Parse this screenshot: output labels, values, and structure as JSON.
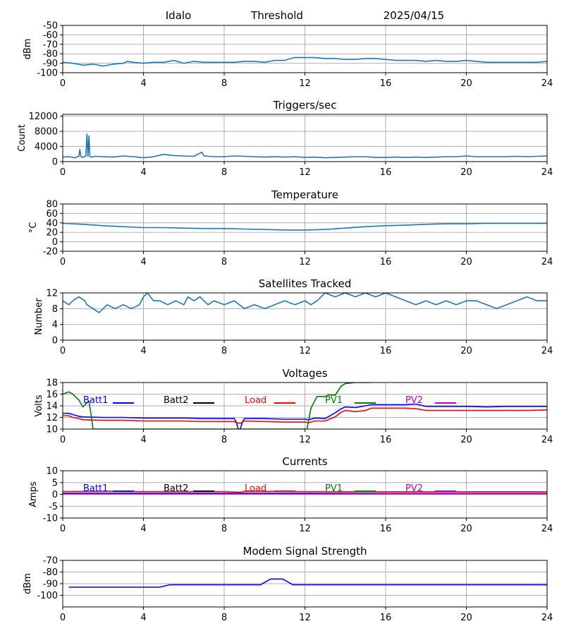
{
  "header": {
    "station": "Idalo",
    "mode": "Threshold",
    "date": "2025/04/15"
  },
  "chart_data": [
    {
      "id": "rssi",
      "type": "line",
      "title": "",
      "ylabel": "dBm",
      "xlim": [
        0,
        24
      ],
      "ylim": [
        -100,
        -50
      ],
      "yticks": [
        -100,
        -90,
        -80,
        -70,
        -60,
        -50
      ],
      "xticks": [
        0,
        4,
        8,
        12,
        16,
        20,
        24
      ],
      "grid": true,
      "series": [
        {
          "color": "#1f77b4",
          "x": [
            0,
            0.5,
            1,
            1.5,
            2,
            2.5,
            3,
            3.2,
            3.5,
            4,
            4.5,
            5,
            5.5,
            6,
            6.5,
            7,
            7.5,
            8,
            8.5,
            9,
            9.5,
            10,
            10.5,
            11,
            11.3,
            11.5,
            12,
            12.5,
            13,
            13.5,
            14,
            14.5,
            15,
            15.5,
            16,
            16.5,
            17,
            17.5,
            18,
            18.5,
            19,
            19.5,
            20,
            20.5,
            21,
            21.5,
            22,
            22.5,
            23,
            23.5,
            24
          ],
          "y": [
            -89,
            -90,
            -92,
            -91,
            -93,
            -91,
            -90,
            -88,
            -89,
            -90,
            -89,
            -89,
            -87,
            -90,
            -88,
            -89,
            -89,
            -89,
            -89,
            -88,
            -88,
            -89,
            -87,
            -87,
            -85,
            -84,
            -84,
            -84,
            -85,
            -85,
            -86,
            -86,
            -85,
            -85,
            -86,
            -87,
            -87,
            -87,
            -88,
            -87,
            -88,
            -88,
            -87,
            -88,
            -89,
            -89,
            -89,
            -89,
            -89,
            -89,
            -88
          ]
        }
      ]
    },
    {
      "id": "triggers",
      "type": "line",
      "title": "Triggers/sec",
      "ylabel": "Count",
      "xlim": [
        0,
        24
      ],
      "ylim": [
        0,
        12500
      ],
      "yticks": [
        0,
        4000,
        8000,
        12000
      ],
      "xticks": [
        0,
        4,
        8,
        12,
        16,
        20,
        24
      ],
      "grid": true,
      "series": [
        {
          "color": "#1f77b4",
          "x": [
            0,
            0.3,
            0.6,
            0.8,
            0.85,
            0.9,
            1.0,
            1.15,
            1.2,
            1.25,
            1.3,
            1.35,
            1.4,
            1.6,
            2,
            2.5,
            3,
            3.5,
            4,
            4.5,
            5,
            5.5,
            6,
            6.5,
            6.9,
            7,
            7.5,
            8,
            8.5,
            9,
            9.5,
            10,
            10.5,
            11,
            11.5,
            12,
            12.5,
            13,
            13.5,
            14,
            14.5,
            15,
            15.5,
            16,
            16.5,
            17,
            17.5,
            18,
            18.5,
            19,
            19.5,
            20,
            20.5,
            21,
            21.5,
            22,
            22.5,
            23,
            23.5,
            24
          ],
          "y": [
            1200,
            1300,
            1000,
            1400,
            3200,
            1300,
            1100,
            1500,
            7300,
            1400,
            6800,
            1300,
            1200,
            1400,
            1300,
            1200,
            1500,
            1300,
            1000,
            1300,
            1900,
            1600,
            1500,
            1400,
            2500,
            1500,
            1300,
            1300,
            1500,
            1400,
            1300,
            1200,
            1300,
            1200,
            1300,
            1100,
            1200,
            1000,
            1100,
            1200,
            1300,
            1300,
            1100,
            1100,
            1200,
            1100,
            1200,
            1100,
            1200,
            1300,
            1300,
            1500,
            1300,
            1300,
            1300,
            1300,
            1400,
            1300,
            1400,
            1500
          ]
        }
      ]
    },
    {
      "id": "temperature",
      "type": "line",
      "title": "Temperature",
      "ylabel": "°C",
      "xlim": [
        0,
        24
      ],
      "ylim": [
        -20,
        80
      ],
      "yticks": [
        -20,
        0,
        20,
        40,
        60,
        80
      ],
      "xticks": [
        0,
        4,
        8,
        12,
        16,
        20,
        24
      ],
      "grid": true,
      "series": [
        {
          "color": "#1f77b4",
          "x": [
            0,
            1,
            2,
            3,
            4,
            5,
            6,
            7,
            8,
            9,
            10,
            11,
            12,
            13,
            14,
            15,
            16,
            17,
            18,
            19,
            20,
            21,
            22,
            23,
            24
          ],
          "y": [
            39,
            37,
            34,
            32,
            30,
            30,
            29,
            28,
            28,
            27,
            26,
            25,
            25,
            26,
            29,
            32,
            34,
            35,
            37,
            38,
            38,
            39,
            39,
            39,
            39
          ]
        }
      ]
    },
    {
      "id": "satellites",
      "type": "line",
      "title": "Satellites Tracked",
      "ylabel": "Number",
      "xlim": [
        0,
        24
      ],
      "ylim": [
        0,
        12
      ],
      "yticks": [
        0,
        4,
        8,
        12
      ],
      "xticks": [
        0,
        4,
        8,
        12,
        16,
        20,
        24
      ],
      "grid": true,
      "series": [
        {
          "color": "#1f77b4",
          "x": [
            0,
            0.3,
            0.5,
            0.8,
            1.1,
            1.2,
            1.5,
            1.8,
            2,
            2.2,
            2.6,
            3,
            3.4,
            3.8,
            4,
            4.2,
            4.5,
            4.8,
            5.2,
            5.6,
            6,
            6.2,
            6.5,
            6.8,
            7.2,
            7.5,
            8,
            8.5,
            9,
            9.5,
            10,
            10.5,
            11,
            11.5,
            12,
            12.3,
            12.6,
            13,
            13.5,
            14,
            14.5,
            15,
            15.5,
            16,
            16.5,
            17,
            17.5,
            18,
            18.5,
            19,
            19.5,
            20,
            20.5,
            21,
            21.5,
            22,
            22.5,
            23,
            23.5,
            24
          ],
          "y": [
            10,
            9,
            10,
            11,
            10,
            9,
            8,
            7,
            8,
            9,
            8,
            9,
            8,
            9,
            11,
            12,
            10,
            10,
            9,
            10,
            9,
            11,
            10,
            11,
            9,
            10,
            9,
            10,
            8,
            9,
            8,
            9,
            10,
            9,
            10,
            9,
            10,
            12,
            11,
            12,
            11,
            12,
            11,
            12,
            11,
            10,
            9,
            10,
            9,
            10,
            9,
            10,
            10,
            9,
            8,
            9,
            10,
            11,
            10,
            10
          ]
        }
      ]
    },
    {
      "id": "voltages",
      "type": "line",
      "title": "Voltages",
      "ylabel": "Volts",
      "xlim": [
        0,
        24
      ],
      "ylim": [
        10,
        18
      ],
      "yticks": [
        10,
        12,
        14,
        16,
        18
      ],
      "xticks": [
        0,
        4,
        8,
        12,
        16,
        20,
        24
      ],
      "grid": true,
      "legend": [
        "Batt1",
        "Batt2",
        "Load",
        "PV1",
        "PV2"
      ],
      "series": [
        {
          "name": "Batt1",
          "color": "#0000ff",
          "x": [
            0,
            0.3,
            0.5,
            0.8,
            1,
            2,
            3,
            4,
            5,
            6,
            7,
            8,
            8.5,
            8.6,
            8.7,
            8.8,
            8.9,
            9.0,
            9.1,
            10,
            11,
            12,
            12.2,
            12.5,
            13,
            13.5,
            13.8,
            14,
            14.5,
            15,
            15.3,
            16,
            17,
            17.5,
            18,
            19,
            20,
            21,
            22,
            23,
            24
          ],
          "y": [
            12.7,
            12.7,
            12.5,
            12.2,
            12.1,
            12.0,
            12.0,
            11.9,
            11.9,
            11.9,
            11.8,
            11.8,
            11.8,
            11.2,
            10.0,
            10.0,
            11.2,
            11.8,
            11.8,
            11.8,
            11.7,
            11.7,
            11.6,
            11.9,
            11.8,
            12.8,
            13.5,
            13.8,
            13.7,
            14.0,
            14.2,
            14.2,
            14.2,
            14.3,
            13.9,
            13.9,
            13.9,
            13.8,
            13.9,
            13.9,
            13.9
          ]
        },
        {
          "name": "Batt2",
          "color": "#000000",
          "x": [],
          "y": []
        },
        {
          "name": "Load",
          "color": "#ff0000",
          "x": [
            0,
            0.3,
            0.5,
            0.8,
            1,
            2,
            3,
            4,
            5,
            6,
            7,
            8,
            8.5,
            8.6,
            8.8,
            9,
            10,
            11,
            12,
            12.2,
            12.5,
            13,
            13.5,
            13.8,
            14,
            14.5,
            15,
            15.3,
            16,
            17,
            17.5,
            18,
            19,
            20,
            21,
            22,
            23,
            24
          ],
          "y": [
            12.3,
            12.3,
            12.0,
            11.8,
            11.6,
            11.5,
            11.5,
            11.4,
            11.4,
            11.4,
            11.3,
            11.3,
            11.3,
            11.1,
            11.0,
            11.4,
            11.3,
            11.2,
            11.2,
            11.1,
            11.4,
            11.4,
            12.1,
            12.9,
            13.2,
            13.0,
            13.2,
            13.6,
            13.6,
            13.6,
            13.5,
            13.2,
            13.2,
            13.2,
            13.2,
            13.2,
            13.2,
            13.3
          ]
        },
        {
          "name": "PV1",
          "color": "#008000",
          "x": [
            0,
            0.3,
            0.5,
            0.8,
            1,
            1.2,
            1.3,
            1.4,
            1.5,
            12.1,
            12.3,
            12.6,
            13,
            13.2,
            13.5,
            13.8,
            14,
            14.5,
            15,
            15.3
          ],
          "y": [
            16,
            16.4,
            16,
            15,
            13.8,
            14.5,
            14.8,
            12.5,
            10,
            10,
            13.6,
            15.6,
            15.6,
            15.9,
            15.8,
            17.4,
            17.8,
            18,
            18,
            18
          ]
        },
        {
          "name": "PV2",
          "color": "#bf00bf",
          "x": [],
          "y": []
        }
      ]
    },
    {
      "id": "currents",
      "type": "line",
      "title": "Currents",
      "ylabel": "Amps",
      "xlim": [
        0,
        24
      ],
      "ylim": [
        -10,
        10
      ],
      "yticks": [
        -10,
        -5,
        0,
        5,
        10
      ],
      "xticks": [
        0,
        4,
        8,
        12,
        16,
        20,
        24
      ],
      "grid": true,
      "legend": [
        "Batt1",
        "Batt2",
        "Load",
        "PV1",
        "PV2"
      ],
      "series": [
        {
          "name": "Batt1",
          "color": "#0000ff",
          "x": [
            0,
            4,
            8,
            12,
            16,
            20,
            24
          ],
          "y": [
            0.5,
            0.5,
            0.5,
            0.5,
            0.4,
            0.4,
            0.4
          ]
        },
        {
          "name": "Batt2",
          "color": "#000000",
          "x": [],
          "y": []
        },
        {
          "name": "Load",
          "color": "#ff0000",
          "x": [
            0,
            2,
            4,
            6,
            8,
            8.8,
            9,
            12,
            16,
            20,
            24
          ],
          "y": [
            1.2,
            1.3,
            1.2,
            1.2,
            1.2,
            0.9,
            1.3,
            1.2,
            1.1,
            1.1,
            1.1
          ]
        },
        {
          "name": "PV1",
          "color": "#008000",
          "x": [],
          "y": []
        },
        {
          "name": "PV2",
          "color": "#bf00bf",
          "x": [
            0,
            24
          ],
          "y": [
            0.2,
            0.2
          ]
        }
      ]
    },
    {
      "id": "modem",
      "type": "line",
      "title": "Modem Signal Strength",
      "ylabel": "dBm",
      "xlim": [
        0,
        24
      ],
      "ylim": [
        -110,
        -70
      ],
      "yticks": [
        -100,
        -90,
        -80,
        -70
      ],
      "xticks": [
        0,
        4,
        8,
        12,
        16,
        20,
        24
      ],
      "grid": true,
      "series": [
        {
          "color": "#0000ff",
          "x": [
            0.3,
            4.8,
            5.3,
            9.8,
            10.3,
            10.9,
            11.4,
            24
          ],
          "y": [
            -93,
            -93,
            -91,
            -91,
            -86,
            -86,
            -91,
            -91
          ]
        }
      ]
    }
  ]
}
